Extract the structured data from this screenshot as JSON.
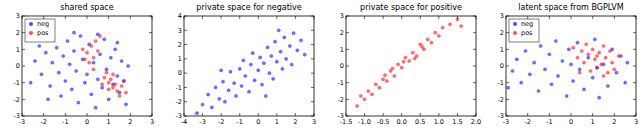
{
  "chart_data": [
    {
      "type": "scatter",
      "title": "shared space",
      "legend": "upper left",
      "xlim": [
        -3,
        3
      ],
      "ylim": [
        -3,
        3
      ],
      "xticks": [
        -3,
        -2,
        -1,
        0,
        1,
        2,
        3
      ],
      "yticks": [
        -3,
        -2,
        -1,
        0,
        1,
        2,
        3
      ],
      "series": [
        {
          "name": "neg",
          "color": "#0000ff",
          "marker": "circle",
          "x": [
            -2.4,
            -2.1,
            -1.9,
            -1.7,
            -1.6,
            -1.4,
            -1.3,
            -1.2,
            -1.1,
            -1.0,
            -0.9,
            -0.8,
            -0.7,
            -0.6,
            -0.5,
            -0.4,
            -0.3,
            -0.2,
            -0.1,
            0.0,
            0.1,
            0.2,
            0.3,
            0.4,
            0.5,
            0.6,
            0.7,
            0.8,
            0.9,
            1.0,
            1.1,
            1.2,
            1.3,
            1.4,
            1.5,
            1.6,
            1.7,
            1.8,
            1.9,
            -2.6,
            -1.8,
            -0.6,
            0.5,
            1.4,
            -2.2
          ],
          "values": [
            0.3,
            -0.5,
            0.8,
            -1.2,
            0.2,
            1.1,
            -0.4,
            -1.8,
            0.6,
            -0.9,
            1.5,
            0.1,
            -1.4,
            0.9,
            -0.3,
            -2.2,
            1.8,
            0.4,
            -1.0,
            -0.5,
            1.3,
            -1.7,
            0.2,
            -2.5,
            -0.8,
            0.7,
            -1.3,
            1.6,
            -0.2,
            -2.0,
            0.5,
            -1.1,
            1.0,
            -0.6,
            -1.6,
            0.3,
            -0.9,
            -2.3,
            0.0,
            -1.0,
            -2.0,
            2.0,
            1.9,
            1.4,
            1.2
          ]
        },
        {
          "name": "pos",
          "color": "#ff0000",
          "marker": "circle",
          "x": [
            0.0,
            0.2,
            0.3,
            0.4,
            0.1,
            0.5,
            -0.2,
            0.6,
            0.3,
            -0.1,
            0.8,
            1.0,
            1.2,
            1.4,
            0.9,
            1.1,
            1.3,
            1.5,
            1.6,
            0.7,
            1.8,
            1.0,
            1.2,
            1.7
          ],
          "values": [
            0.8,
            1.2,
            0.5,
            1.5,
            0.2,
            0.9,
            1.0,
            1.8,
            -0.2,
            0.4,
            -0.7,
            -1.0,
            -1.3,
            -1.5,
            -0.4,
            -0.8,
            -1.1,
            -1.8,
            -1.2,
            -1.1,
            -1.6,
            -1.4,
            -0.5,
            -0.9
          ]
        }
      ]
    },
    {
      "type": "scatter",
      "title": "private space for negative",
      "xlim": [
        -4,
        3
      ],
      "ylim": [
        -3,
        4
      ],
      "xticks": [
        -4,
        -3,
        -2,
        -1,
        0,
        1,
        2,
        3
      ],
      "yticks": [
        -3,
        -2,
        -1,
        0,
        1,
        2,
        3,
        4
      ],
      "series": [
        {
          "color": "#0000ff",
          "marker": "circle",
          "x": [
            -3.0,
            -2.7,
            -2.5,
            -2.3,
            -2.1,
            -1.9,
            -1.8,
            -1.6,
            -1.5,
            -1.3,
            -1.2,
            -1.0,
            -0.9,
            -0.8,
            -0.7,
            -0.5,
            -0.4,
            -0.3,
            -0.2,
            0.0,
            0.1,
            0.2,
            0.3,
            0.5,
            0.6,
            0.7,
            0.8,
            0.9,
            1.0,
            1.2,
            1.3,
            1.4,
            1.5,
            1.7,
            1.8,
            1.9,
            2.1,
            2.3,
            2.5,
            -3.3,
            -2.0,
            0.4,
            1.1
          ],
          "values": [
            -2.2,
            -1.5,
            -2.4,
            -1.0,
            -1.8,
            -0.6,
            -2.0,
            -1.2,
            0.1,
            -0.7,
            -1.6,
            0.3,
            -0.9,
            0.9,
            -0.2,
            -1.3,
            0.6,
            1.4,
            -0.5,
            0.2,
            1.1,
            -0.8,
            0.7,
            1.8,
            0.0,
            1.2,
            -0.4,
            2.2,
            0.8,
            1.5,
            0.3,
            2.5,
            1.0,
            1.9,
            0.6,
            2.8,
            1.6,
            2.3,
            1.3,
            -2.8,
            0.2,
            -1.6,
            3.0
          ]
        }
      ]
    },
    {
      "type": "scatter",
      "title": "private space for positive",
      "xlim": [
        -1.5,
        2
      ],
      "ylim": [
        -3,
        3
      ],
      "xticks": [
        -1.5,
        {
          "value": -1,
          "label": "-1.0"
        },
        -0.5,
        {
          "value": 0,
          "label": "0.0"
        },
        0.5,
        {
          "value": 1,
          "label": "1.0"
        },
        1.5,
        {
          "value": 2,
          "label": "2.0"
        }
      ],
      "yticks": [
        -3,
        -2,
        -1,
        0,
        1,
        2,
        3
      ],
      "series": [
        {
          "color": "#ff0000",
          "marker": "circle",
          "x": [
            -1.2,
            -1.1,
            -1.0,
            -0.9,
            -0.8,
            -0.7,
            -0.6,
            -0.5,
            -0.4,
            -0.3,
            -0.2,
            -0.1,
            0.0,
            0.1,
            0.2,
            0.3,
            0.4,
            0.5,
            0.6,
            0.7,
            0.8,
            0.9,
            1.0,
            1.1,
            1.3,
            1.5,
            1.6,
            -0.45,
            0.05,
            0.35,
            0.55,
            -0.25
          ],
          "values": [
            -2.4,
            -1.8,
            -2.0,
            -1.5,
            -1.7,
            -1.1,
            -1.3,
            -0.8,
            -0.9,
            -0.3,
            -0.6,
            0.1,
            -0.1,
            0.5,
            0.3,
            0.8,
            0.6,
            1.3,
            1.0,
            1.6,
            1.4,
            2.0,
            1.8,
            2.3,
            2.5,
            2.8,
            2.4,
            -0.55,
            0.25,
            0.45,
            1.15,
            -0.15
          ]
        }
      ]
    },
    {
      "type": "scatter",
      "title": "latent space from BGPLVM",
      "legend": "upper left",
      "xlim": [
        -3,
        3
      ],
      "ylim": [
        -3,
        3
      ],
      "xticks": [
        -3,
        -2,
        -1,
        0,
        1,
        2,
        3
      ],
      "yticks": [
        -3,
        -2,
        -1,
        0,
        1,
        2,
        3
      ],
      "series": [
        {
          "name": "neg",
          "color": "#0000ff",
          "marker": "circle",
          "x": [
            -2.7,
            -2.5,
            -2.3,
            -2.1,
            -1.9,
            -1.7,
            -1.5,
            -1.4,
            -1.2,
            -1.0,
            -0.9,
            -0.7,
            -0.6,
            -0.4,
            -0.2,
            -0.1,
            0.1,
            0.3,
            0.4,
            0.6,
            0.8,
            1.0,
            1.1,
            1.3,
            1.5,
            1.7,
            1.9,
            2.1,
            2.3,
            2.5,
            2.6,
            -1.8,
            0.0,
            -2.9,
            1.2
          ],
          "values": [
            -0.3,
            0.4,
            -1.0,
            0.9,
            -0.5,
            0.2,
            -1.5,
            1.2,
            -0.2,
            0.7,
            -1.1,
            1.5,
            -0.6,
            0.3,
            -1.8,
            1.0,
            -0.9,
            1.4,
            -0.2,
            -1.4,
            0.5,
            -0.7,
            1.6,
            -1.9,
            0.1,
            -1.2,
            1.0,
            -0.4,
            0.6,
            -1.0,
            0.2,
            1.6,
            0.1,
            -1.3,
            -0.1
          ]
        },
        {
          "name": "pos",
          "color": "#ff0000",
          "marker": "circle",
          "x": [
            0.3,
            0.5,
            0.6,
            0.8,
            0.9,
            1.0,
            1.1,
            1.2,
            1.3,
            1.4,
            1.5,
            1.6,
            1.7,
            1.8,
            1.9,
            2.0,
            0.7,
            1.2,
            1.5,
            0.4,
            2.2,
            0.1
          ],
          "values": [
            0.5,
            0.9,
            0.2,
            0.7,
            -0.3,
            1.0,
            0.4,
            -0.1,
            0.8,
            0.1,
            1.2,
            0.5,
            -0.4,
            0.9,
            0.2,
            -0.2,
            1.3,
            0.6,
            -0.6,
            -0.4,
            0.6,
            1.1
          ]
        }
      ]
    }
  ]
}
